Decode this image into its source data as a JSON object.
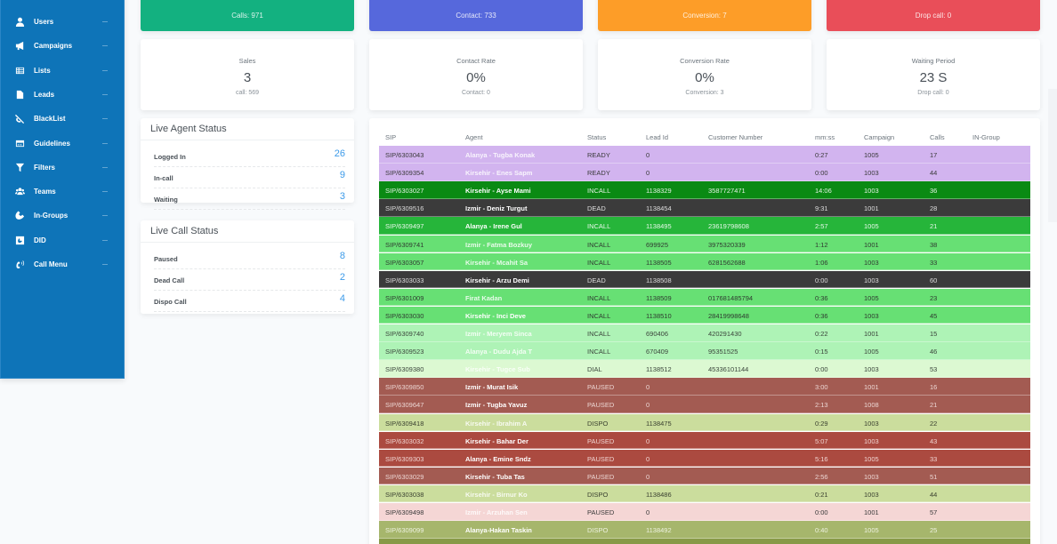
{
  "sidebar": {
    "items": [
      {
        "label": "Users",
        "icon": "user-icon"
      },
      {
        "label": "Campaigns",
        "icon": "megaphone-icon"
      },
      {
        "label": "Lists",
        "icon": "list-icon"
      },
      {
        "label": "Leads",
        "icon": "file-icon"
      },
      {
        "label": "BlackList",
        "icon": "phone-slash-icon"
      },
      {
        "label": "Guidelines",
        "icon": "credit-card-icon"
      },
      {
        "label": "Filters",
        "icon": "filter-icon"
      },
      {
        "label": "Teams",
        "icon": "users-icon"
      },
      {
        "label": "In-Groups",
        "icon": "phone-icon"
      },
      {
        "label": "DID",
        "icon": "phone-square-icon"
      },
      {
        "label": "Call Menu",
        "icon": "phone-volume-icon"
      }
    ]
  },
  "top_cards": [
    {
      "sub": "Calls: 971",
      "color": "#13b180"
    },
    {
      "sub": "Contact: 733",
      "color": "#5668dc"
    },
    {
      "sub": "Conversion: 7",
      "color": "#fd9d28"
    },
    {
      "sub": "Drop call: 0",
      "color": "#e94e59"
    }
  ],
  "stat_cards": [
    {
      "title": "Sales",
      "value": "3",
      "sub": "call: 569"
    },
    {
      "title": "Contact Rate",
      "value": "0%",
      "sub": "Contact: 0"
    },
    {
      "title": "Conversion Rate",
      "value": "0%",
      "sub": "Conversion: 3"
    },
    {
      "title": "Waiting Period",
      "value": "23 S",
      "sub": "Drop call: 0"
    }
  ],
  "agent_status": {
    "title": "Live Agent Status",
    "rows": [
      {
        "label": "Logged In",
        "value": "26"
      },
      {
        "label": "In-call",
        "value": "9"
      },
      {
        "label": "Waiting",
        "value": "3"
      }
    ]
  },
  "call_status": {
    "title": "Live Call Status",
    "rows": [
      {
        "label": "Paused",
        "value": "8"
      },
      {
        "label": "Dead Call",
        "value": "2"
      },
      {
        "label": "Dispo Call",
        "value": "4"
      }
    ]
  },
  "table": {
    "columns": [
      "SIP",
      "Agent",
      "Status",
      "Lead Id",
      "Customer Number",
      "mm:ss",
      "Campaign",
      "Calls",
      "IN-Group"
    ],
    "rows": [
      {
        "sip": "SIP/6303043",
        "agent": "Alanya - Tugba Konak",
        "status": "READY",
        "lead": "0",
        "cust": "",
        "mm": "0:27",
        "camp": "1005",
        "calls": "17",
        "ing": "",
        "bg": "#d2b4ef",
        "fg": "#3a3a3a",
        "agent_fg": "#ffffff"
      },
      {
        "sip": "SIP/6309354",
        "agent": "Kirsehir - Enes Sapm",
        "status": "READY",
        "lead": "0",
        "cust": "",
        "mm": "0:00",
        "camp": "1003",
        "calls": "44",
        "ing": "",
        "bg": "#d2b4ef",
        "fg": "#3a3a3a",
        "agent_fg": "#ffffff"
      },
      {
        "sip": "SIP/6303027",
        "agent": "Kirsehir - Ayse Mami",
        "status": "INCALL",
        "lead": "1138329",
        "cust": "3587727471",
        "mm": "14:06",
        "camp": "1003",
        "calls": "36",
        "ing": "",
        "bg": "#0a8a13",
        "fg": "#e6f3e6",
        "agent_fg": "#ffffff"
      },
      {
        "sip": "SIP/6309516",
        "agent": "Izmir - Deniz Turgut",
        "status": "DEAD",
        "lead": "1138454",
        "cust": "",
        "mm": "9:31",
        "camp": "1001",
        "calls": "28",
        "ing": "",
        "bg": "#3b3b3b",
        "fg": "#dddddd",
        "agent_fg": "#ffffff"
      },
      {
        "sip": "SIP/6309497",
        "agent": "Alanya - Irene Gul",
        "status": "INCALL",
        "lead": "1138495",
        "cust": "23619798608",
        "mm": "2:57",
        "camp": "1005",
        "calls": "21",
        "ing": "",
        "bg": "#26b53a",
        "fg": "#e8f8ea",
        "agent_fg": "#ffffff"
      },
      {
        "sip": "SIP/6309741",
        "agent": "Izmir - Fatma Bozkuy",
        "status": "INCALL",
        "lead": "699925",
        "cust": "3975320339",
        "mm": "1:12",
        "camp": "1001",
        "calls": "38",
        "ing": "",
        "bg": "#67e074",
        "fg": "#2f3a30",
        "agent_fg": "#ffffff"
      },
      {
        "sip": "SIP/6303057",
        "agent": "Kirsehir - Mcahit Sa",
        "status": "INCALL",
        "lead": "1138505",
        "cust": "6281562688",
        "mm": "1:06",
        "camp": "1003",
        "calls": "33",
        "ing": "",
        "bg": "#67e074",
        "fg": "#2f3a30",
        "agent_fg": "#ffffff"
      },
      {
        "sip": "SIP/6303033",
        "agent": "Kirsehir - Arzu Demi",
        "status": "DEAD",
        "lead": "1138508",
        "cust": "",
        "mm": "0:00",
        "camp": "1003",
        "calls": "60",
        "ing": "",
        "bg": "#3b3b3b",
        "fg": "#dddddd",
        "agent_fg": "#ffffff"
      },
      {
        "sip": "SIP/6301009",
        "agent": "Firat Kadan",
        "status": "INCALL",
        "lead": "1138509",
        "cust": "017681485794",
        "mm": "0:36",
        "camp": "1005",
        "calls": "23",
        "ing": "",
        "bg": "#67e074",
        "fg": "#2f3a30",
        "agent_fg": "#ffffff"
      },
      {
        "sip": "SIP/6303030",
        "agent": "Kirsehir - Inci Deve",
        "status": "INCALL",
        "lead": "1138510",
        "cust": "28419998648",
        "mm": "0:36",
        "camp": "1003",
        "calls": "45",
        "ing": "",
        "bg": "#67e074",
        "fg": "#2f3a30",
        "agent_fg": "#ffffff"
      },
      {
        "sip": "SIP/6309740",
        "agent": "Izmir - Meryem Sinca",
        "status": "INCALL",
        "lead": "690406",
        "cust": "420291430",
        "mm": "0:22",
        "camp": "1001",
        "calls": "15",
        "ing": "",
        "bg": "#aef3b6",
        "fg": "#3a443b",
        "agent_fg": "#ffffff"
      },
      {
        "sip": "SIP/6309523",
        "agent": "Alanya - Dudu Ajda T",
        "status": "INCALL",
        "lead": "670409",
        "cust": "95351525",
        "mm": "0:15",
        "camp": "1005",
        "calls": "46",
        "ing": "",
        "bg": "#aef3b6",
        "fg": "#3a443b",
        "agent_fg": "#ffffff"
      },
      {
        "sip": "SIP/6309380",
        "agent": "Kirsehir - Tugce Sub",
        "status": "DIAL",
        "lead": "1138512",
        "cust": "45336101144",
        "mm": "0:00",
        "camp": "1003",
        "calls": "53",
        "ing": "",
        "bg": "#dcf9d2",
        "fg": "#3a443b",
        "agent_fg": "#ffffff"
      },
      {
        "sip": "SIP/6309850",
        "agent": "Izmir - Murat Isik",
        "status": "PAUSED",
        "lead": "0",
        "cust": "",
        "mm": "3:00",
        "camp": "1001",
        "calls": "16",
        "ing": "",
        "bg": "#a35b52",
        "fg": "#ecd6d3",
        "agent_fg": "#ffffff"
      },
      {
        "sip": "SIP/6309647",
        "agent": "Izmir - Tugba Yavuz",
        "status": "PAUSED",
        "lead": "0",
        "cust": "",
        "mm": "2:13",
        "camp": "1008",
        "calls": "21",
        "ing": "",
        "bg": "#a35b52",
        "fg": "#ecd6d3",
        "agent_fg": "#ffffff"
      },
      {
        "sip": "SIP/6309418",
        "agent": "Kirsehir - Ibrahim A",
        "status": "DISPO",
        "lead": "1138475",
        "cust": "",
        "mm": "0:29",
        "camp": "1003",
        "calls": "22",
        "ing": "",
        "bg": "#cbdd9d",
        "fg": "#3a4030",
        "agent_fg": "#ffffff"
      },
      {
        "sip": "SIP/6303032",
        "agent": "Kirsehir - Bahar Der",
        "status": "PAUSED",
        "lead": "0",
        "cust": "",
        "mm": "5:07",
        "camp": "1003",
        "calls": "43",
        "ing": "",
        "bg": "#ab4a40",
        "fg": "#f0d5d2",
        "agent_fg": "#ffffff"
      },
      {
        "sip": "SIP/6309303",
        "agent": "Alanya - Emine Sndz",
        "status": "PAUSED",
        "lead": "0",
        "cust": "",
        "mm": "5:16",
        "camp": "1005",
        "calls": "33",
        "ing": "",
        "bg": "#ab4a40",
        "fg": "#f0d5d2",
        "agent_fg": "#ffffff"
      },
      {
        "sip": "SIP/6303029",
        "agent": "Kirsehir - Tuba Tas",
        "status": "PAUSED",
        "lead": "0",
        "cust": "",
        "mm": "2:56",
        "camp": "1003",
        "calls": "51",
        "ing": "",
        "bg": "#a35b52",
        "fg": "#ecd6d3",
        "agent_fg": "#ffffff"
      },
      {
        "sip": "SIP/6303038",
        "agent": "Kirsehir - Birnur Ko",
        "status": "DISPO",
        "lead": "1138486",
        "cust": "",
        "mm": "0:21",
        "camp": "1003",
        "calls": "44",
        "ing": "",
        "bg": "#cbdd9d",
        "fg": "#3a4030",
        "agent_fg": "#ffffff"
      },
      {
        "sip": "SIP/6309498",
        "agent": "Izmir - Arzuhan Sen",
        "status": "PAUSED",
        "lead": "0",
        "cust": "",
        "mm": "0:00",
        "camp": "1001",
        "calls": "57",
        "ing": "",
        "bg": "#f5d6d5",
        "fg": "#3a3a3a",
        "agent_fg": "#ffffff"
      },
      {
        "sip": "SIP/6309099",
        "agent": "Alanya-Hakan Taskin",
        "status": "DISPO",
        "lead": "1138492",
        "cust": "",
        "mm": "0:40",
        "camp": "1005",
        "calls": "25",
        "ing": "",
        "bg": "#a6b66c",
        "fg": "#eef2e0",
        "agent_fg": "#ffffff"
      },
      {
        "sip": "",
        "agent": "",
        "status": "",
        "lead": "",
        "cust": "",
        "mm": "",
        "camp": "",
        "calls": "",
        "ing": "",
        "bg": "#889a48",
        "fg": "#ffffff",
        "agent_fg": "#ffffff"
      }
    ]
  }
}
